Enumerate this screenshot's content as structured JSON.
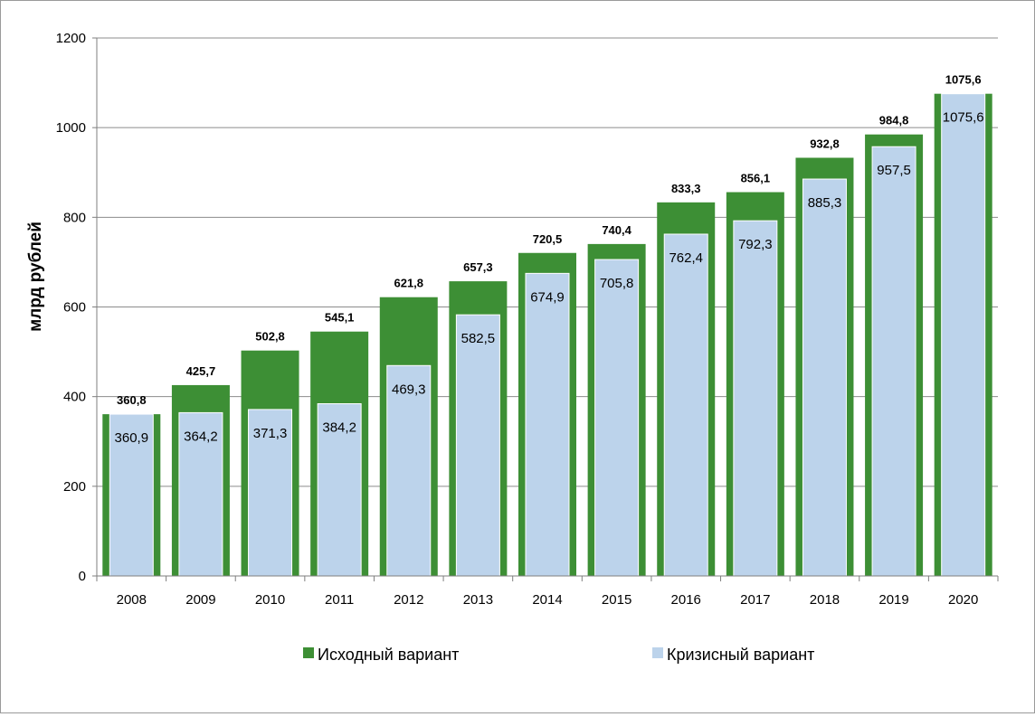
{
  "chart_data": {
    "type": "bar",
    "ylabel": "млрд рублей",
    "ylim": [
      0,
      1200
    ],
    "yticks": [
      "0",
      "200",
      "400",
      "600",
      "800",
      "1000",
      "1200"
    ],
    "grid": true,
    "legend_position": "bottom",
    "categories": [
      "2008",
      "2009",
      "2010",
      "2011",
      "2012",
      "2013",
      "2014",
      "2015",
      "2016",
      "2017",
      "2018",
      "2019",
      "2020"
    ],
    "series": [
      {
        "name": "Исходный вариант",
        "color": "#3d8f35",
        "values": [
          360.8,
          425.7,
          502.8,
          545.1,
          621.8,
          657.3,
          720.5,
          740.4,
          833.3,
          856.1,
          932.8,
          984.8,
          1075.6
        ],
        "labels": [
          "360,8",
          "425,7",
          "502,8",
          "545,1",
          "621,8",
          "657,3",
          "720,5",
          "740,4",
          "833,3",
          "856,1",
          "932,8",
          "984,8",
          "1075,6"
        ]
      },
      {
        "name": "Кризисный вариант",
        "color": "#bcd3eb",
        "values": [
          360.9,
          364.2,
          371.3,
          384.2,
          469.3,
          582.5,
          674.9,
          705.8,
          762.4,
          792.3,
          885.3,
          957.5,
          1075.6
        ],
        "labels": [
          "360,9",
          "364,2",
          "371,3",
          "384,2",
          "469,3",
          "582,5",
          "674,9",
          "705,8",
          "762,4",
          "792,3",
          "885,3",
          "957,5",
          "1075,6"
        ]
      }
    ]
  }
}
